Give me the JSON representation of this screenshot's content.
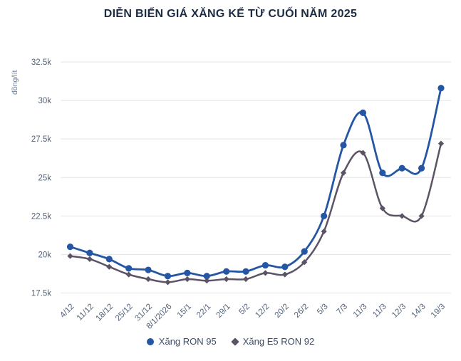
{
  "chart_data": {
    "type": "line",
    "title": "DIỄN BIẾN GIÁ XĂNG KỂ TỪ CUỐI NĂM 2025",
    "ylabel": "đồng/lít",
    "unit": "nghìn đồng/lít (k)",
    "ylim": [
      17.5,
      32.5
    ],
    "grid": "horizontal",
    "legend_position": "bottom",
    "yticks": [
      {
        "value": 17.5,
        "label": "17.5k"
      },
      {
        "value": 20,
        "label": "20k"
      },
      {
        "value": 22.5,
        "label": "22.5k"
      },
      {
        "value": 25,
        "label": "25k"
      },
      {
        "value": 27.5,
        "label": "27.5k"
      },
      {
        "value": 30,
        "label": "30k"
      },
      {
        "value": 32.5,
        "label": "32.5k"
      }
    ],
    "categories": [
      "4/12",
      "11/12",
      "18/12",
      "25/12",
      "31/12",
      "8/1/2026",
      "15/1",
      "22/1",
      "29/1",
      "5/2",
      "12/2",
      "20/2",
      "26/2",
      "5/3",
      "7/3",
      "11/3",
      "11/3",
      "12/3",
      "14/3",
      "19/3"
    ],
    "series": [
      {
        "name": "Xăng RON 95",
        "marker": "circle",
        "color": "#2456a4",
        "values": [
          20.5,
          20.1,
          19.7,
          19.1,
          19.0,
          18.6,
          18.8,
          18.6,
          18.9,
          18.9,
          19.3,
          19.2,
          20.2,
          22.5,
          27.1,
          29.2,
          25.3,
          25.6,
          25.6,
          30.8
        ]
      },
      {
        "name": "Xăng E5 RON 92",
        "marker": "diamond",
        "color": "#5c5466",
        "values": [
          19.9,
          19.7,
          19.2,
          18.7,
          18.4,
          18.2,
          18.4,
          18.3,
          18.4,
          18.4,
          18.8,
          18.7,
          19.5,
          21.5,
          25.3,
          26.6,
          23.0,
          22.5,
          22.5,
          27.2
        ]
      }
    ],
    "colors": {
      "title": "#1c2c44",
      "tick_text": "#53637a",
      "axis_label_text": "#6e7f96",
      "gridline": "#e2e4e9",
      "legend_text": "#3b4d66",
      "background": "#ffffff"
    }
  }
}
